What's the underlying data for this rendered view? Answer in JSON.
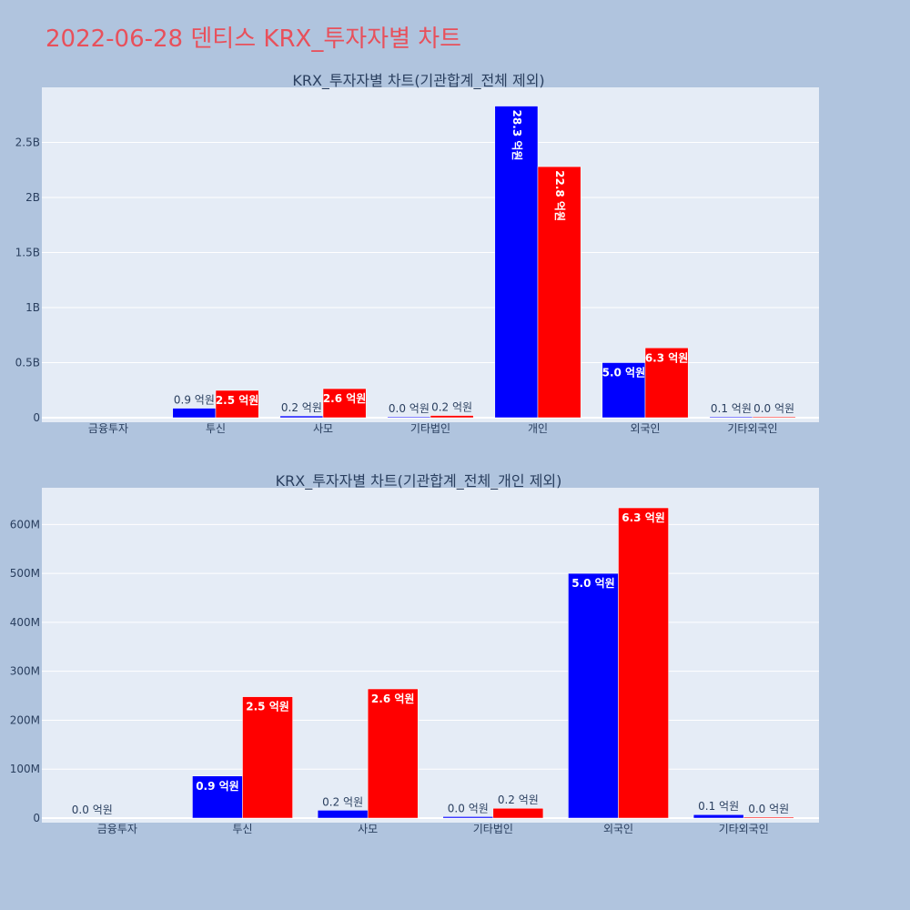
{
  "title": "2022-06-28 덴티스 KRX_투자자별 차트",
  "colors": {
    "buy": "#0000ff",
    "sell": "#ff0000",
    "plot_bg": "#e5ecf6",
    "page_bg": "#b0c4de",
    "title": "#e8505b"
  },
  "chart_data": [
    {
      "type": "bar",
      "title": "KRX_투자자별 차트(기관합계_전체 제외)",
      "categories": [
        "금융투자",
        "투신",
        "사모",
        "기타법인",
        "개인",
        "외국인",
        "기타외국인"
      ],
      "series": [
        {
          "values": [
            0,
            86000000,
            16000000,
            3000000,
            2830000000,
            500000000,
            7000000
          ],
          "labels": [
            "",
            "0.9 억원",
            "0.2 억원",
            "0.0 억원",
            "28.3 억원",
            "5.0 억원",
            "0.1 억원"
          ]
        },
        {
          "values": [
            0,
            248000000,
            264000000,
            20000000,
            2280000000,
            634000000,
            2000000
          ],
          "labels": [
            "",
            "2.5 억원",
            "2.6 억원",
            "0.2 억원",
            "22.8 억원",
            "6.3 억원",
            "0.0 억원"
          ]
        }
      ],
      "ylim": [
        0,
        3000000000
      ],
      "yticks": [
        0,
        500000000,
        1000000000,
        1500000000,
        2000000000,
        2500000000
      ],
      "ytick_labels": [
        "0",
        "0.5B",
        "1B",
        "1.5B",
        "2B",
        "2.5B"
      ],
      "grid": true
    },
    {
      "type": "bar",
      "title": "KRX_투자자별 차트(기관합계_전체_개인 제외)",
      "categories": [
        "금융투자",
        "투신",
        "사모",
        "기타법인",
        "외국인",
        "기타외국인"
      ],
      "series": [
        {
          "values": [
            0,
            86000000,
            16000000,
            3000000,
            500000000,
            7000000
          ],
          "labels": [
            "0.0 억원",
            "0.9 억원",
            "0.2 억원",
            "0.0 억원",
            "5.0 억원",
            "0.1 억원"
          ]
        },
        {
          "values": [
            0,
            248000000,
            264000000,
            20000000,
            634000000,
            2000000
          ],
          "labels": [
            "",
            "2.5 억원",
            "2.6 억원",
            "0.2 억원",
            "6.3 억원",
            "0.0 억원"
          ]
        }
      ],
      "ylim": [
        0,
        675000000
      ],
      "yticks": [
        0,
        100000000,
        200000000,
        300000000,
        400000000,
        500000000,
        600000000
      ],
      "ytick_labels": [
        "0",
        "100M",
        "200M",
        "300M",
        "400M",
        "500M",
        "600M"
      ],
      "grid": true
    }
  ]
}
